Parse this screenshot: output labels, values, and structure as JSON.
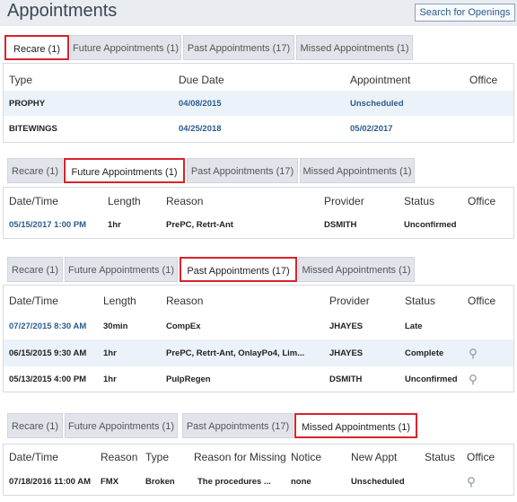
{
  "header": {
    "title": "Appointments",
    "search_button": "Search for Openings"
  },
  "tabs": [
    "Recare (1)",
    "Future Appointments (1)",
    "Past Appointments (17)",
    "Missed Appointments (1)"
  ],
  "recare": {
    "columns": [
      "Type",
      "Due Date",
      "Appointment",
      "Office"
    ],
    "rows": [
      {
        "type": "PROPHY",
        "due": "04/08/2015",
        "appt": "Unscheduled",
        "office": ""
      },
      {
        "type": "BITEWINGS",
        "due": "04/25/2018",
        "appt": "05/02/2017",
        "office": ""
      }
    ]
  },
  "future": {
    "columns": [
      "Date/Time",
      "Length",
      "Reason",
      "Provider",
      "Status",
      "Office"
    ],
    "rows": [
      {
        "datetime": "05/15/2017 1:00 PM",
        "length": "1hr",
        "reason": "PrePC, Retrt-Ant",
        "provider": "DSMITH",
        "status": "Unconfirmed",
        "office": ""
      }
    ]
  },
  "past": {
    "columns": [
      "Date/Time",
      "Length",
      "Reason",
      "Provider",
      "Status",
      "Office"
    ],
    "rows": [
      {
        "datetime": "07/27/2015 8:30 AM",
        "length": "30min",
        "reason": "CompEx",
        "provider": "JHAYES",
        "status": "Late",
        "office_icon": false
      },
      {
        "datetime": "06/15/2015 9:30 AM",
        "length": "1hr",
        "reason": "PrePC, Retrt-Ant, OnlayPo4, Lim...",
        "provider": "JHAYES",
        "status": "Complete",
        "office_icon": true
      },
      {
        "datetime": "05/13/2015 4:00 PM",
        "length": "1hr",
        "reason": "PulpRegen",
        "provider": "DSMITH",
        "status": "Unconfirmed",
        "office_icon": true
      }
    ]
  },
  "missed": {
    "columns": [
      "Date/Time",
      "Reason",
      "Type",
      "Reason for Missing",
      "Notice",
      "New Appt",
      "Status",
      "Office"
    ],
    "rows": [
      {
        "datetime": "07/18/2016 11:00 AM",
        "reason": "FMX",
        "type": "Broken",
        "reason_missing": "The procedures ...",
        "notice": "none",
        "new_appt": "Unscheduled",
        "status": "",
        "office_icon": true
      }
    ]
  },
  "colors": {
    "accent": "#d9232a",
    "link": "#2b5c8f",
    "row_alt": "#ecf2f9",
    "tab": "#e1e4ea"
  }
}
